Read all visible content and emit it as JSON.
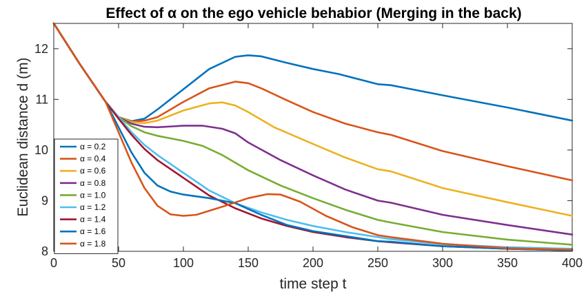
{
  "chart_data": {
    "type": "line",
    "title": "Effect of α on the ego vehicle behabior (Merging in the back)",
    "xlabel": "time step t",
    "ylabel": "Euclidean distance d (m)",
    "xlim": [
      0,
      400
    ],
    "ylim": [
      8,
      12.5
    ],
    "xticks": [
      0,
      50,
      100,
      150,
      200,
      250,
      300,
      350,
      400
    ],
    "yticks": [
      8,
      9,
      10,
      11,
      12
    ],
    "grid": false,
    "legend_position": "bottom-left",
    "series": [
      {
        "name": "α = 0.2",
        "color": "#0072BD",
        "points": [
          [
            0,
            12.5
          ],
          [
            20,
            11.7
          ],
          [
            40,
            10.95
          ],
          [
            50,
            10.65
          ],
          [
            60,
            10.57
          ],
          [
            70,
            10.62
          ],
          [
            80,
            10.8
          ],
          [
            100,
            11.2
          ],
          [
            120,
            11.6
          ],
          [
            140,
            11.84
          ],
          [
            150,
            11.87
          ],
          [
            160,
            11.85
          ],
          [
            180,
            11.72
          ],
          [
            200,
            11.6
          ],
          [
            220,
            11.5
          ],
          [
            250,
            11.3
          ],
          [
            260,
            11.28
          ],
          [
            300,
            11.08
          ],
          [
            350,
            10.84
          ],
          [
            400,
            10.58
          ]
        ]
      },
      {
        "name": "α = 0.4",
        "color": "#D95319",
        "points": [
          [
            0,
            12.5
          ],
          [
            20,
            11.7
          ],
          [
            40,
            10.95
          ],
          [
            50,
            10.65
          ],
          [
            60,
            10.56
          ],
          [
            70,
            10.58
          ],
          [
            80,
            10.65
          ],
          [
            100,
            10.95
          ],
          [
            120,
            11.22
          ],
          [
            140,
            11.35
          ],
          [
            150,
            11.32
          ],
          [
            160,
            11.22
          ],
          [
            180,
            10.98
          ],
          [
            200,
            10.75
          ],
          [
            225,
            10.52
          ],
          [
            250,
            10.35
          ],
          [
            260,
            10.3
          ],
          [
            300,
            9.98
          ],
          [
            350,
            9.68
          ],
          [
            400,
            9.4
          ]
        ]
      },
      {
        "name": "α = 0.6",
        "color": "#EDB120",
        "points": [
          [
            0,
            12.5
          ],
          [
            20,
            11.7
          ],
          [
            40,
            10.95
          ],
          [
            50,
            10.65
          ],
          [
            60,
            10.55
          ],
          [
            70,
            10.53
          ],
          [
            80,
            10.58
          ],
          [
            100,
            10.78
          ],
          [
            120,
            10.92
          ],
          [
            130,
            10.94
          ],
          [
            140,
            10.88
          ],
          [
            150,
            10.75
          ],
          [
            170,
            10.45
          ],
          [
            200,
            10.12
          ],
          [
            225,
            9.85
          ],
          [
            250,
            9.62
          ],
          [
            260,
            9.58
          ],
          [
            300,
            9.25
          ],
          [
            350,
            8.97
          ],
          [
            400,
            8.7
          ]
        ]
      },
      {
        "name": "α = 0.8",
        "color": "#7E2F8E",
        "points": [
          [
            0,
            12.5
          ],
          [
            20,
            11.7
          ],
          [
            40,
            10.95
          ],
          [
            50,
            10.65
          ],
          [
            60,
            10.52
          ],
          [
            70,
            10.46
          ],
          [
            80,
            10.45
          ],
          [
            100,
            10.48
          ],
          [
            115,
            10.48
          ],
          [
            130,
            10.42
          ],
          [
            140,
            10.33
          ],
          [
            150,
            10.15
          ],
          [
            175,
            9.8
          ],
          [
            200,
            9.5
          ],
          [
            225,
            9.22
          ],
          [
            250,
            9.0
          ],
          [
            260,
            8.96
          ],
          [
            300,
            8.72
          ],
          [
            350,
            8.52
          ],
          [
            400,
            8.33
          ]
        ]
      },
      {
        "name": "α = 1.0",
        "color": "#77AC30",
        "points": [
          [
            0,
            12.5
          ],
          [
            20,
            11.7
          ],
          [
            40,
            10.95
          ],
          [
            50,
            10.65
          ],
          [
            60,
            10.47
          ],
          [
            70,
            10.35
          ],
          [
            80,
            10.28
          ],
          [
            100,
            10.18
          ],
          [
            115,
            10.08
          ],
          [
            130,
            9.9
          ],
          [
            150,
            9.6
          ],
          [
            175,
            9.3
          ],
          [
            200,
            9.05
          ],
          [
            225,
            8.82
          ],
          [
            250,
            8.62
          ],
          [
            260,
            8.57
          ],
          [
            300,
            8.38
          ],
          [
            350,
            8.23
          ],
          [
            400,
            8.13
          ]
        ]
      },
      {
        "name": "α = 1.2",
        "color": "#4DBEEE",
        "points": [
          [
            0,
            12.5
          ],
          [
            20,
            11.7
          ],
          [
            40,
            10.95
          ],
          [
            50,
            10.65
          ],
          [
            60,
            10.35
          ],
          [
            70,
            10.1
          ],
          [
            80,
            9.9
          ],
          [
            100,
            9.55
          ],
          [
            120,
            9.2
          ],
          [
            140,
            8.95
          ],
          [
            160,
            8.77
          ],
          [
            180,
            8.62
          ],
          [
            200,
            8.5
          ],
          [
            225,
            8.38
          ],
          [
            250,
            8.28
          ],
          [
            260,
            8.24
          ],
          [
            300,
            8.14
          ],
          [
            350,
            8.08
          ],
          [
            400,
            8.05
          ]
        ]
      },
      {
        "name": "α = 1.4",
        "color": "#A2142F",
        "points": [
          [
            0,
            12.5
          ],
          [
            20,
            11.7
          ],
          [
            40,
            10.95
          ],
          [
            50,
            10.62
          ],
          [
            60,
            10.3
          ],
          [
            70,
            10.02
          ],
          [
            80,
            9.8
          ],
          [
            100,
            9.45
          ],
          [
            120,
            9.1
          ],
          [
            140,
            8.85
          ],
          [
            160,
            8.65
          ],
          [
            180,
            8.5
          ],
          [
            200,
            8.38
          ],
          [
            225,
            8.28
          ],
          [
            250,
            8.2
          ],
          [
            260,
            8.18
          ],
          [
            300,
            8.1
          ],
          [
            350,
            8.05
          ],
          [
            400,
            8.02
          ]
        ]
      },
      {
        "name": "α = 1.6",
        "color": "#0072BD",
        "points": [
          [
            0,
            12.5
          ],
          [
            20,
            11.7
          ],
          [
            40,
            10.95
          ],
          [
            50,
            10.45
          ],
          [
            60,
            9.95
          ],
          [
            70,
            9.55
          ],
          [
            80,
            9.3
          ],
          [
            90,
            9.18
          ],
          [
            100,
            9.12
          ],
          [
            120,
            9.05
          ],
          [
            140,
            8.95
          ],
          [
            160,
            8.72
          ],
          [
            180,
            8.52
          ],
          [
            200,
            8.4
          ],
          [
            225,
            8.3
          ],
          [
            250,
            8.2
          ],
          [
            260,
            8.19
          ],
          [
            300,
            8.1
          ],
          [
            350,
            8.05
          ],
          [
            400,
            8.02
          ]
        ]
      },
      {
        "name": "α = 1.8",
        "color": "#D95319",
        "points": [
          [
            0,
            12.5
          ],
          [
            20,
            11.7
          ],
          [
            40,
            10.95
          ],
          [
            50,
            10.35
          ],
          [
            60,
            9.75
          ],
          [
            70,
            9.25
          ],
          [
            80,
            8.9
          ],
          [
            90,
            8.73
          ],
          [
            100,
            8.7
          ],
          [
            110,
            8.72
          ],
          [
            130,
            8.88
          ],
          [
            150,
            9.05
          ],
          [
            165,
            9.13
          ],
          [
            175,
            9.12
          ],
          [
            190,
            8.98
          ],
          [
            210,
            8.7
          ],
          [
            230,
            8.48
          ],
          [
            250,
            8.32
          ],
          [
            260,
            8.28
          ],
          [
            300,
            8.15
          ],
          [
            350,
            8.06
          ],
          [
            400,
            8.03
          ]
        ]
      }
    ]
  }
}
